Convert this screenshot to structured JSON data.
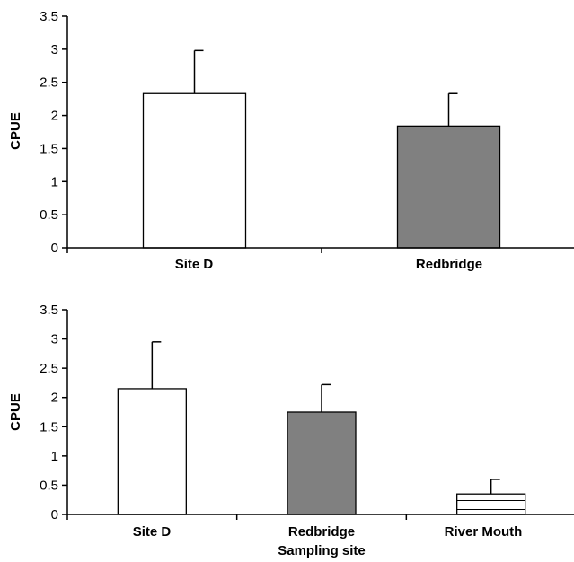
{
  "chart_data": [
    {
      "type": "bar",
      "categories": [
        "Site D",
        "Redbridge"
      ],
      "values": [
        2.33,
        1.84
      ],
      "errors": [
        0.65,
        0.49
      ],
      "fills": [
        "white",
        "gray"
      ],
      "ylabel": "CPUE",
      "xlabel": "",
      "ylim": [
        0,
        3.5
      ],
      "yticks": [
        "0",
        "0.5",
        "1",
        "1.5",
        "2",
        "2.5",
        "3",
        "3.5"
      ],
      "grid": false
    },
    {
      "type": "bar",
      "categories": [
        "Site D",
        "Redbridge",
        "River Mouth"
      ],
      "values": [
        2.15,
        1.75,
        0.35
      ],
      "errors": [
        0.8,
        0.47,
        0.25
      ],
      "fills": [
        "white",
        "gray",
        "horizontal-hatch"
      ],
      "ylabel": "CPUE",
      "xlabel": "Sampling site",
      "ylim": [
        0,
        3.5
      ],
      "yticks": [
        "0",
        "0.5",
        "1",
        "1.5",
        "2",
        "2.5",
        "3",
        "3.5"
      ],
      "grid": false
    }
  ],
  "colors": {
    "gray_bar": "#808080",
    "axis": "#000000",
    "white_bar": "#ffffff"
  }
}
